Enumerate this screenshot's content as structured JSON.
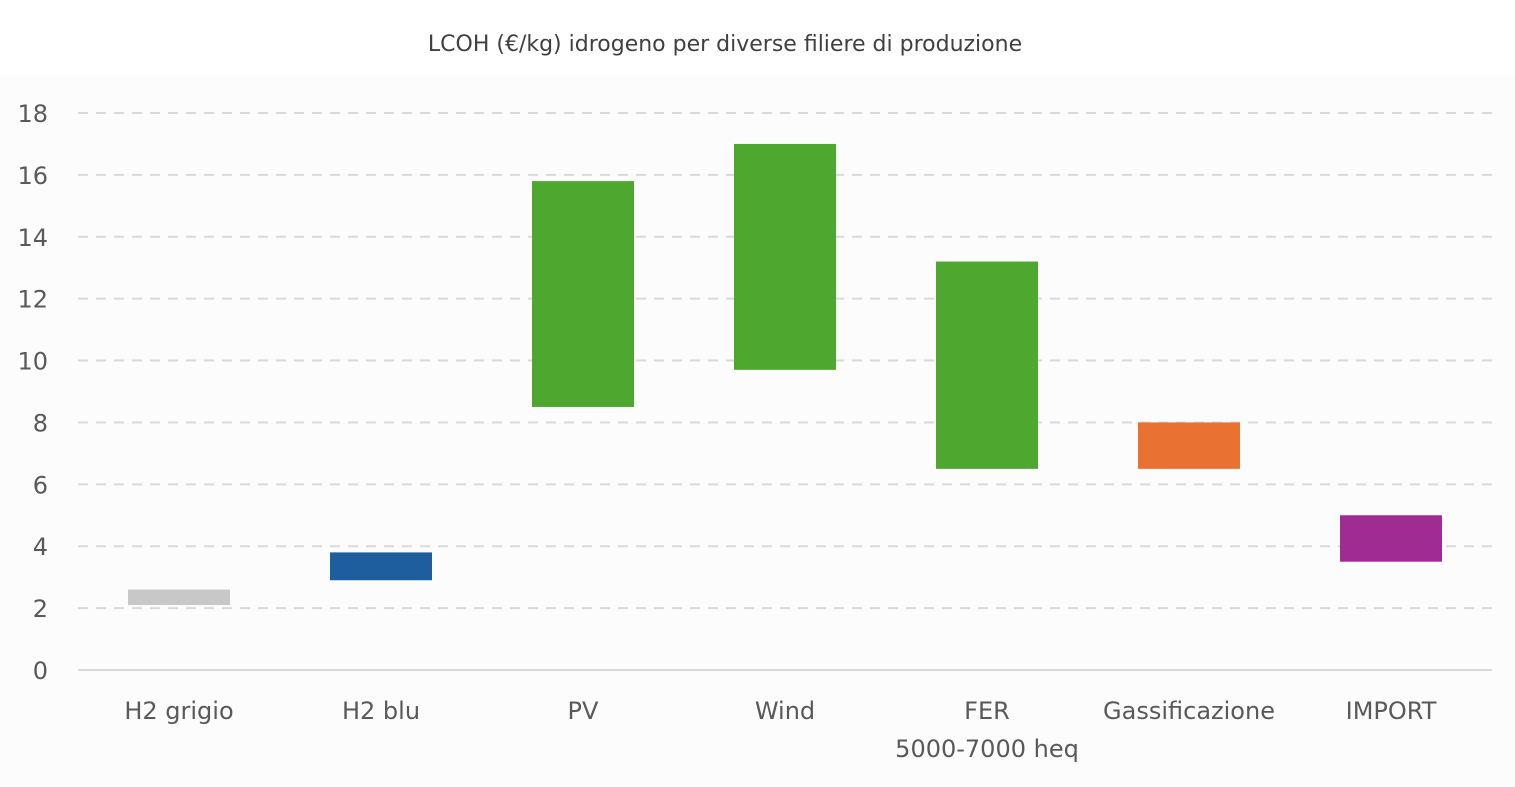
{
  "chart_data": {
    "type": "bar",
    "subtype": "floating-range",
    "title": "LCOH (€/kg) idrogeno per diverse filiere di produzione",
    "xlabel": "",
    "ylabel": "",
    "ylim": [
      0,
      18
    ],
    "yticks": [
      0,
      2,
      4,
      6,
      8,
      10,
      12,
      14,
      16,
      18
    ],
    "grid": true,
    "grid_style": "dashed",
    "legend": "none",
    "categories": [
      {
        "label": [
          "H2 grigio"
        ],
        "min": 2.1,
        "max": 2.6,
        "color": "#c8c8c8"
      },
      {
        "label": [
          "H2 blu"
        ],
        "min": 2.9,
        "max": 3.8,
        "color": "#1f5e9e"
      },
      {
        "label": [
          "PV"
        ],
        "min": 8.5,
        "max": 15.8,
        "color": "#4ea72e"
      },
      {
        "label": [
          "Wind"
        ],
        "min": 9.7,
        "max": 17.0,
        "color": "#4ea72e"
      },
      {
        "label": [
          "FER",
          "5000-7000 heq"
        ],
        "min": 6.5,
        "max": 13.2,
        "color": "#4ea72e"
      },
      {
        "label": [
          "Gassificazione"
        ],
        "min": 6.5,
        "max": 8.0,
        "color": "#e97132"
      },
      {
        "label": [
          "IMPORT"
        ],
        "min": 3.5,
        "max": 5.0,
        "color": "#a02b93"
      }
    ]
  }
}
